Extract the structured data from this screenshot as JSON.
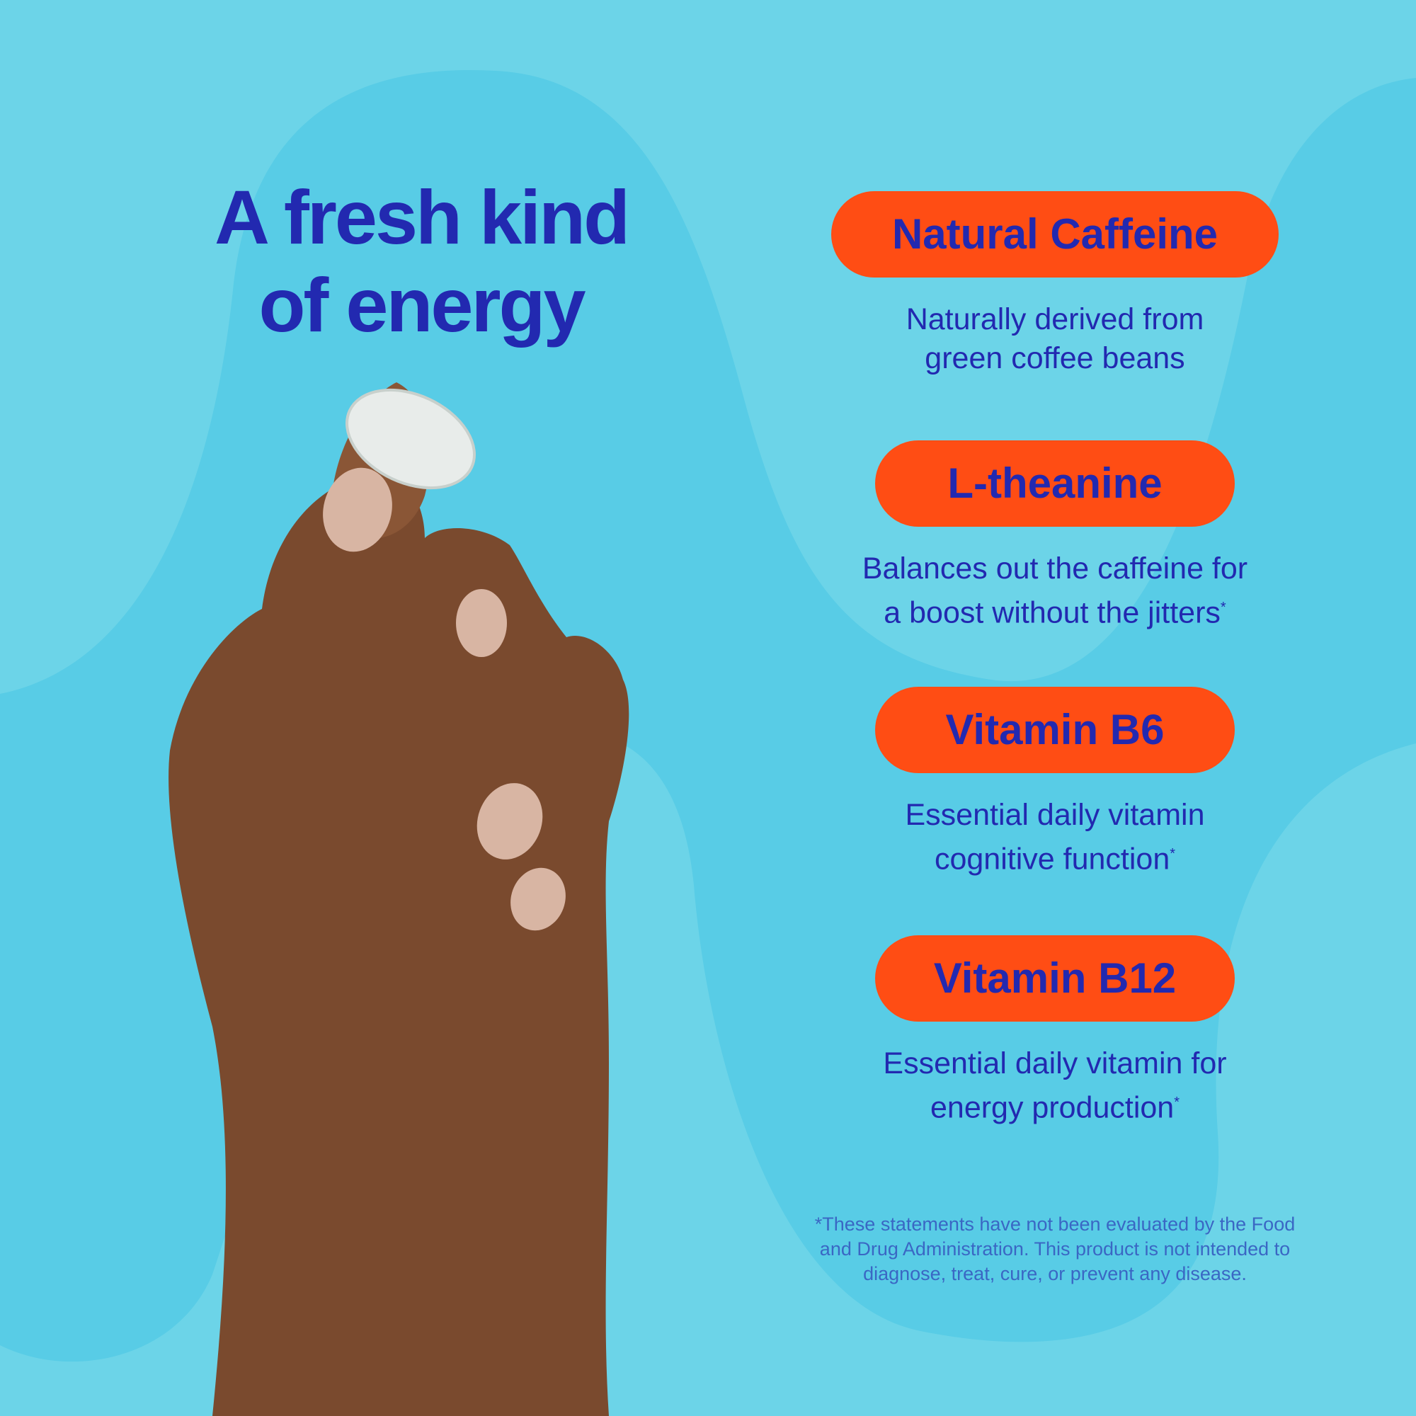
{
  "headline": {
    "line1": "A fresh kind",
    "line2": "of energy"
  },
  "colors": {
    "background": "#6cd4e8",
    "blob": "#58cce6",
    "pill": "#ff4d14",
    "text": "#2229b0",
    "skin": "#7a4a2e",
    "nail": "#d8b5a3",
    "tablet": "#e8ecea"
  },
  "features": [
    {
      "label": "Natural Caffeine",
      "line1": "Naturally derived from",
      "line2": "green coffee beans",
      "asterisk": ""
    },
    {
      "label": "L-theanine",
      "line1": "Balances out the caffeine for",
      "line2": "a boost without the jitters",
      "asterisk": "*"
    },
    {
      "label": "Vitamin B6",
      "line1": "Essential daily vitamin",
      "line2": "cognitive function",
      "asterisk": "*"
    },
    {
      "label": "Vitamin B12",
      "line1": "Essential daily vitamin for",
      "line2": "energy production",
      "asterisk": "*"
    }
  ],
  "disclaimer": {
    "line1": "*These statements have not been evaluated by the Food",
    "line2": "and Drug Administration. This product is not intended to",
    "line3": "diagnose, treat, cure, or prevent any disease."
  },
  "images": {
    "hand": "hand-holding-tablet"
  }
}
